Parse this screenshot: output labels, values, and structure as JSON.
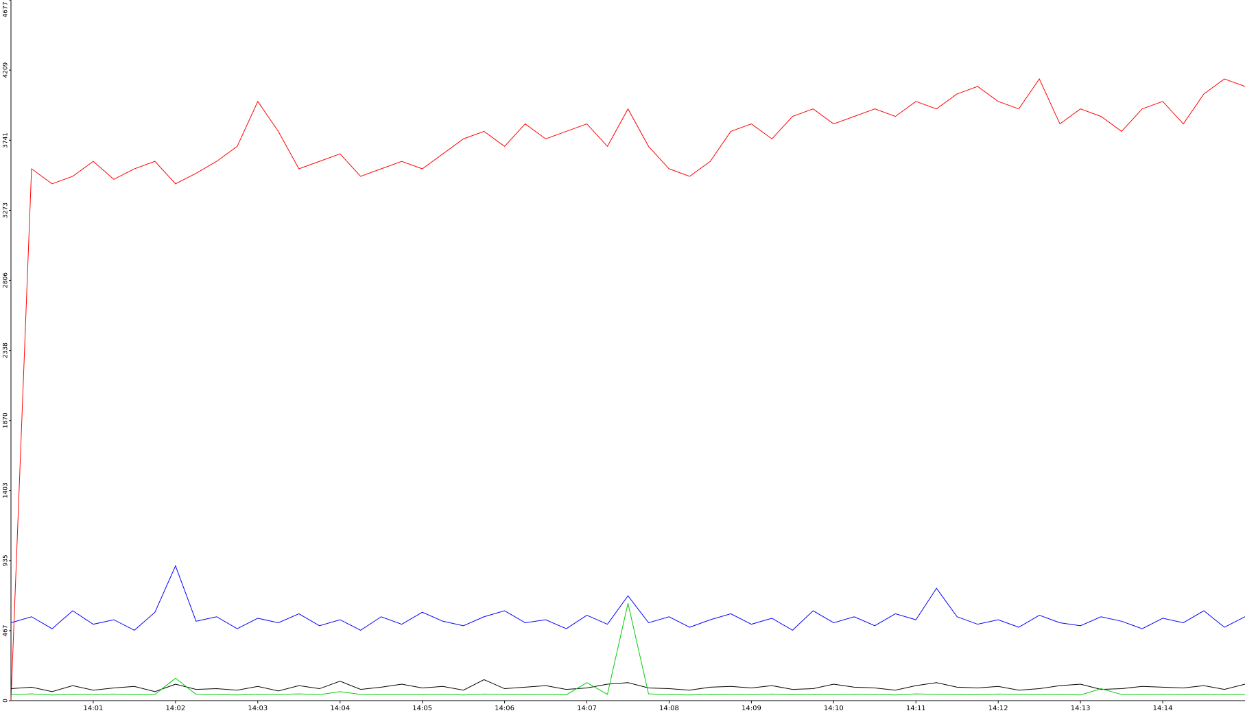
{
  "chart_data": {
    "type": "line",
    "x": [
      0,
      0.25,
      0.5,
      0.75,
      1,
      1.25,
      1.5,
      1.75,
      2,
      2.25,
      2.5,
      2.75,
      3,
      3.25,
      3.5,
      3.75,
      4,
      4.25,
      4.5,
      4.75,
      5,
      5.25,
      5.5,
      5.75,
      6,
      6.25,
      6.5,
      6.75,
      7,
      7.25,
      7.5,
      7.75,
      8,
      8.25,
      8.5,
      8.75,
      9,
      9.25,
      9.5,
      9.75,
      10,
      10.25,
      10.5,
      10.75,
      11,
      11.25,
      11.5,
      11.75,
      12,
      12.25,
      12.5,
      12.75,
      13,
      13.25,
      13.5,
      13.75,
      14,
      14.25,
      14.5,
      14.75,
      15
    ],
    "series": [
      {
        "color": "#ff0000",
        "values": [
          0,
          3550,
          3450,
          3500,
          3600,
          3480,
          3550,
          3600,
          3450,
          3520,
          3600,
          3700,
          4000,
          3800,
          3550,
          3600,
          3650,
          3500,
          3550,
          3600,
          3550,
          3650,
          3750,
          3800,
          3700,
          3850,
          3750,
          3800,
          3850,
          3700,
          3950,
          3700,
          3550,
          3500,
          3600,
          3800,
          3850,
          3750,
          3900,
          3950,
          3850,
          3900,
          3950,
          3900,
          4000,
          3950,
          4050,
          4100,
          4000,
          3950,
          4150,
          3850,
          3950,
          3900,
          3800,
          3950,
          4000,
          3850,
          4050,
          4150,
          4100
        ]
      },
      {
        "color": "#0000ff",
        "values": [
          520,
          560,
          480,
          600,
          510,
          540,
          470,
          590,
          900,
          530,
          560,
          480,
          550,
          520,
          580,
          500,
          540,
          470,
          560,
          510,
          590,
          530,
          500,
          560,
          600,
          520,
          540,
          480,
          570,
          510,
          700,
          520,
          560,
          490,
          540,
          580,
          510,
          550,
          470,
          600,
          520,
          560,
          500,
          580,
          540,
          750,
          560,
          510,
          540,
          490,
          570,
          520,
          500,
          560,
          530,
          480,
          550,
          520,
          600,
          490,
          560
        ]
      },
      {
        "color": "#000000",
        "values": [
          80,
          90,
          60,
          100,
          70,
          85,
          95,
          60,
          110,
          75,
          80,
          70,
          95,
          65,
          100,
          80,
          130,
          75,
          90,
          110,
          85,
          95,
          70,
          140,
          80,
          90,
          100,
          75,
          85,
          110,
          120,
          85,
          80,
          70,
          90,
          95,
          85,
          100,
          75,
          80,
          110,
          90,
          85,
          70,
          100,
          120,
          90,
          85,
          95,
          70,
          80,
          100,
          110,
          75,
          80,
          95,
          90,
          85,
          100,
          75,
          110
        ]
      },
      {
        "color": "#00cc00",
        "values": [
          40,
          45,
          38,
          42,
          40,
          44,
          39,
          41,
          150,
          42,
          40,
          38,
          43,
          41,
          45,
          40,
          60,
          42,
          39,
          41,
          40,
          43,
          38,
          44,
          42,
          40,
          41,
          39,
          120,
          42,
          650,
          45,
          40,
          38,
          42,
          41,
          40,
          44,
          39,
          42,
          40,
          43,
          41,
          38,
          45,
          42,
          40,
          39,
          44,
          41,
          40,
          42,
          38,
          80,
          41,
          40,
          43,
          39,
          42,
          40,
          41
        ]
      }
    ],
    "xlim": [
      0,
      15
    ],
    "xticks": [
      {
        "value": 1,
        "label": "14:01"
      },
      {
        "value": 2,
        "label": "14:02"
      },
      {
        "value": 3,
        "label": "14:03"
      },
      {
        "value": 4,
        "label": "14:04"
      },
      {
        "value": 5,
        "label": "14:05"
      },
      {
        "value": 6,
        "label": "14:06"
      },
      {
        "value": 7,
        "label": "14:07"
      },
      {
        "value": 8,
        "label": "14:08"
      },
      {
        "value": 9,
        "label": "14:09"
      },
      {
        "value": 10,
        "label": "14:10"
      },
      {
        "value": 11,
        "label": "14:11"
      },
      {
        "value": 12,
        "label": "14:12"
      },
      {
        "value": 13,
        "label": "14:13"
      },
      {
        "value": 14,
        "label": "14:14"
      }
    ],
    "ylim": [
      0,
      4677
    ],
    "yticks": [
      0,
      467,
      935,
      1403,
      1870,
      2338,
      2806,
      3273,
      3741,
      4209,
      4677
    ]
  }
}
